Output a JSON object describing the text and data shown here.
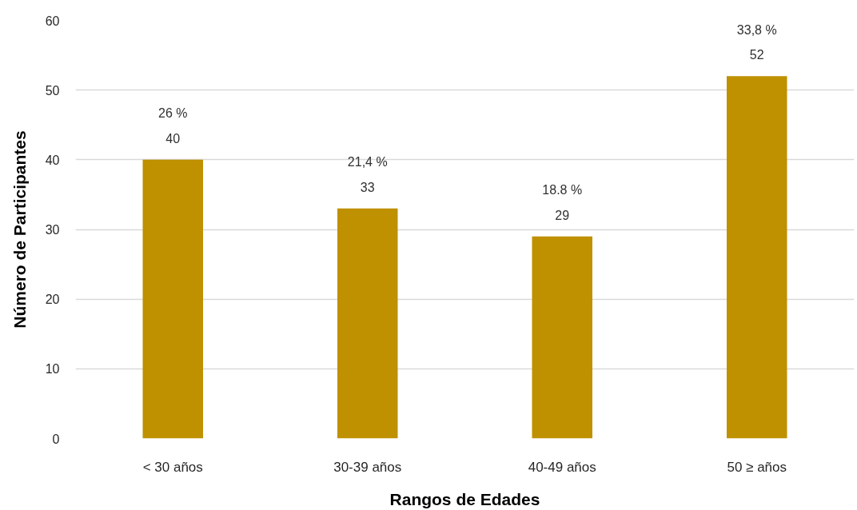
{
  "chart_data": {
    "type": "bar",
    "xlabel": "Rangos de Edades",
    "ylabel": "Número de Participantes",
    "categories": [
      "< 30 años",
      "30-39 años",
      "40-49 años",
      "50 ≥ años"
    ],
    "values": [
      40,
      33,
      29,
      52
    ],
    "color": "#bf9000",
    "value_labels": [
      "26 %\n40",
      "21,4 %\n33",
      "18.8 %\n29",
      "33,8 %\n52"
    ],
    "ylim": [
      0,
      60
    ],
    "yticks": [
      0,
      10,
      20,
      30,
      40,
      50,
      60
    ],
    "grid": "y"
  }
}
